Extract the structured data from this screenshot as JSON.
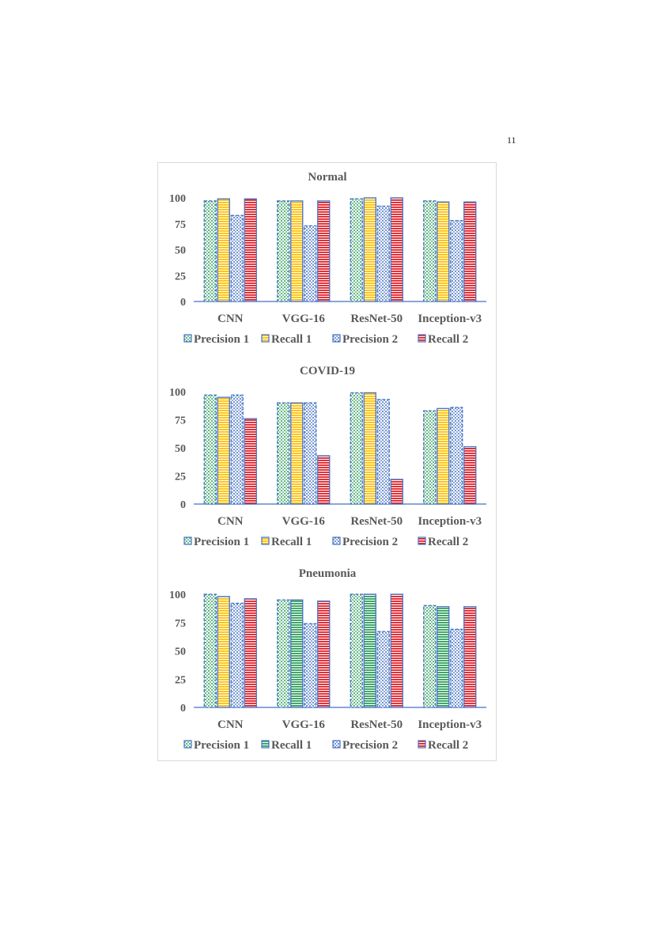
{
  "page_number": "11",
  "chart_data": [
    {
      "type": "bar",
      "title": "Normal",
      "categories": [
        "CNN",
        "VGG-16",
        "ResNet-50",
        "Inception-v3"
      ],
      "ylim": [
        0,
        100
      ],
      "yticks": [
        "0",
        "25",
        "50",
        "75",
        "100"
      ],
      "grid": false,
      "legend_position": "bottom",
      "series": [
        {
          "name": "Precision 1",
          "values": [
            97,
            97,
            99,
            97
          ],
          "pattern": "dots",
          "color": "#2E9E5B"
        },
        {
          "name": "Recall 1",
          "values": [
            99,
            97,
            100,
            96
          ],
          "pattern": "stripes",
          "color": "#FFC000"
        },
        {
          "name": "Precision 2",
          "values": [
            83,
            73,
            92,
            78
          ],
          "pattern": "dots",
          "color": "#4472C4"
        },
        {
          "name": "Recall 2",
          "values": [
            99,
            97,
            100,
            96
          ],
          "pattern": "stripes",
          "color": "#E31B23"
        }
      ]
    },
    {
      "type": "bar",
      "title": "COVID-19",
      "categories": [
        "CNN",
        "VGG-16",
        "ResNet-50",
        "Inception-v3"
      ],
      "ylim": [
        0,
        100
      ],
      "yticks": [
        "0",
        "25",
        "50",
        "75",
        "100"
      ],
      "grid": false,
      "legend_position": "bottom",
      "series": [
        {
          "name": "Precision 1",
          "values": [
            97,
            90,
            99,
            83
          ],
          "pattern": "dots",
          "color": "#2E9E5B"
        },
        {
          "name": "Recall 1",
          "values": [
            95,
            90,
            99,
            85
          ],
          "pattern": "stripes",
          "color": "#FFC000"
        },
        {
          "name": "Precision 2",
          "values": [
            97,
            90,
            93,
            86
          ],
          "pattern": "dots",
          "color": "#4472C4"
        },
        {
          "name": "Recall 2",
          "values": [
            76,
            43,
            22,
            51
          ],
          "pattern": "stripes",
          "color": "#E31B23"
        }
      ]
    },
    {
      "type": "bar",
      "title": "Pneumonia",
      "categories": [
        "CNN",
        "VGG-16",
        "ResNet-50",
        "Inception-v3"
      ],
      "ylim": [
        0,
        100
      ],
      "yticks": [
        "0",
        "25",
        "50",
        "75",
        "100"
      ],
      "grid": false,
      "legend_position": "bottom",
      "series": [
        {
          "name": "Precision 1",
          "values": [
            100,
            95,
            100,
            90
          ],
          "pattern": "dots",
          "color": "#2E9E5B"
        },
        {
          "name": "Recall 1",
          "values": [
            98,
            95,
            100,
            89
          ],
          "pattern": "stripes",
          "color": "#2E9E5B",
          "point_colors": [
            "#FFC000",
            "#2E9E5B",
            "#2E9E5B",
            "#2E9E5B"
          ]
        },
        {
          "name": "Precision 2",
          "values": [
            92,
            74,
            67,
            69
          ],
          "pattern": "dots",
          "color": "#4472C4"
        },
        {
          "name": "Recall 2",
          "values": [
            96,
            94,
            100,
            89
          ],
          "pattern": "stripes",
          "color": "#E31B23"
        }
      ]
    }
  ]
}
